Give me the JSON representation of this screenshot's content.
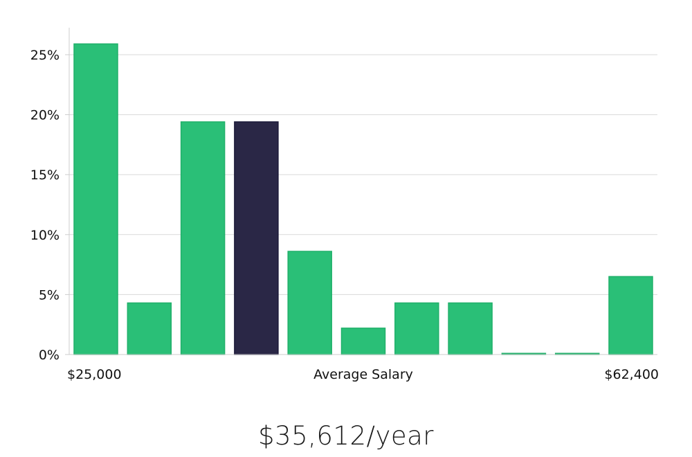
{
  "chart_data": {
    "type": "bar",
    "title": "",
    "xlabel": "Average Salary",
    "ylabel": "",
    "x_start_label": "$25,000",
    "x_end_label": "$62,400",
    "ylim": [
      0,
      27
    ],
    "yticks": [
      0,
      5,
      10,
      15,
      20,
      25
    ],
    "ytick_labels": [
      "0%",
      "5%",
      "10%",
      "15%",
      "20%",
      "25%"
    ],
    "grid": true,
    "values": [
      25.9,
      4.3,
      19.4,
      19.4,
      8.6,
      2.2,
      4.3,
      4.3,
      0.1,
      0.1,
      6.5
    ],
    "highlight_index": 3,
    "bar_color": "#2abf77",
    "bar_edge_color": "#20b06a",
    "highlight_color": "#2a2746",
    "highlight_edge_color": "#1a1838",
    "grid_color": "#d9d9d9",
    "axis_color": "#cccccc"
  },
  "summary": {
    "salary_text": "$35,612/year"
  }
}
